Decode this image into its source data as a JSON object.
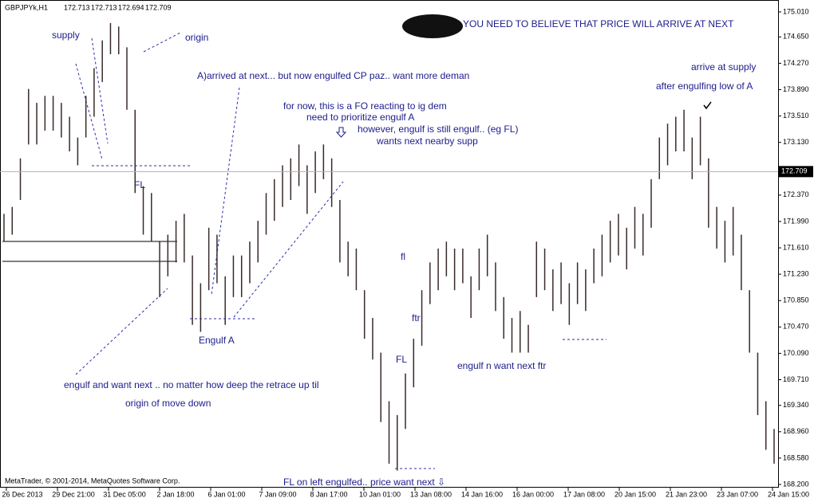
{
  "chart_data": {
    "type": "ohlc_bars",
    "symbol": "GBPJPYk,H1",
    "header_values": [
      172.713,
      172.713,
      172.694,
      172.709
    ],
    "current_price": 172.709,
    "color": "#3a2a2a",
    "ylim": [
      168.154,
      175.182
    ],
    "yticks": [
      {
        "value": 175.01,
        "label": "175.010"
      },
      {
        "value": 174.65,
        "label": "174.650"
      },
      {
        "value": 174.27,
        "label": "174.270"
      },
      {
        "value": 173.89,
        "label": "173.890"
      },
      {
        "value": 173.51,
        "label": "173.510"
      },
      {
        "value": 173.13,
        "label": "173.130"
      },
      {
        "value": 172.37,
        "label": "172.370"
      },
      {
        "value": 171.99,
        "label": "171.990"
      },
      {
        "value": 171.61,
        "label": "171.610"
      },
      {
        "value": 171.23,
        "label": "171.230"
      },
      {
        "value": 170.85,
        "label": "170.850"
      },
      {
        "value": 170.47,
        "label": "170.470"
      },
      {
        "value": 170.09,
        "label": "170.090"
      },
      {
        "value": 169.71,
        "label": "169.710"
      },
      {
        "value": 169.34,
        "label": "169.340"
      },
      {
        "value": 168.96,
        "label": "168.960"
      },
      {
        "value": 168.58,
        "label": "168.580"
      },
      {
        "value": 168.2,
        "label": "168.200"
      }
    ],
    "x_labels": [
      "26 Dec 2013",
      "29 Dec 21:00",
      "31 Dec 05:00",
      "2 Jan 18:00",
      "6 Jan 01:00",
      "7 Jan 09:00",
      "8 Jan 17:00",
      "10 Jan 01:00",
      "13 Jan 08:00",
      "14 Jan 16:00",
      "16 Jan 00:00",
      "17 Jan 08:00",
      "20 Jan 15:00",
      "21 Jan 23:00",
      "23 Jan 07:00",
      "24 Jan 15:00"
    ],
    "high": [
      172.1,
      172.2,
      172.9,
      173.9,
      173.7,
      173.8,
      173.8,
      173.7,
      173.5,
      173.2,
      173.8,
      174.2,
      174.6,
      174.85,
      174.8,
      174.5,
      173.6,
      172.5,
      172.4,
      171.7,
      171.8,
      172.0,
      172.1,
      171.5,
      171.1,
      171.9,
      171.8,
      171.2,
      171.5,
      171.5,
      171.7,
      172.0,
      172.4,
      172.6,
      172.8,
      172.9,
      173.1,
      172.8,
      173.0,
      173.1,
      172.9,
      172.3,
      171.7,
      171.6,
      171.0,
      170.6,
      170.1,
      169.4,
      169.2,
      169.8,
      170.3,
      171.0,
      171.4,
      171.6,
      171.7,
      171.6,
      171.6,
      171.2,
      171.6,
      171.8,
      171.4,
      170.9,
      170.6,
      170.7,
      170.5,
      171.7,
      171.6,
      171.3,
      171.4,
      171.1,
      171.4,
      171.3,
      171.6,
      171.8,
      172.0,
      172.1,
      171.9,
      172.2,
      172.1,
      172.6,
      173.2,
      173.4,
      173.5,
      173.6,
      173.2,
      173.5,
      172.9,
      172.2,
      172.0,
      172.2,
      171.8,
      171.0,
      170.1,
      169.4,
      169.0
    ],
    "low": [
      171.7,
      171.8,
      172.3,
      173.1,
      173.1,
      173.3,
      173.3,
      173.2,
      173.0,
      172.8,
      173.2,
      173.5,
      174.0,
      174.4,
      174.4,
      173.6,
      172.4,
      171.8,
      171.7,
      170.9,
      171.2,
      171.4,
      171.4,
      170.5,
      170.4,
      171.0,
      171.1,
      170.5,
      170.9,
      170.9,
      171.1,
      171.4,
      171.8,
      172.0,
      172.2,
      172.3,
      172.5,
      172.1,
      172.4,
      172.6,
      172.2,
      171.4,
      171.2,
      171.0,
      170.3,
      170.0,
      169.1,
      168.5,
      168.4,
      169.0,
      169.6,
      170.2,
      170.8,
      171.0,
      171.2,
      171.0,
      171.1,
      170.6,
      171.0,
      171.2,
      170.7,
      170.3,
      170.1,
      170.1,
      170.1,
      170.9,
      171.0,
      170.7,
      170.8,
      170.5,
      170.8,
      170.7,
      171.1,
      171.2,
      171.4,
      171.5,
      171.3,
      171.6,
      171.5,
      171.9,
      172.6,
      172.8,
      173.0,
      173.0,
      172.6,
      172.8,
      171.9,
      171.6,
      171.4,
      171.5,
      171.0,
      170.1,
      169.2,
      168.7,
      168.5
    ],
    "annotations": [
      "YOU NEED TO BELIEVE THAT PRICE WILL ARRIVE AT NEXT",
      "supply",
      "origin",
      "A)arrived at next... but now engulfed CP paz.. want more deman",
      "for now, this is a FO reacting to ig dem",
      "need to prioritize engulf A",
      "however, engulf is still engulf.. (eg FL)",
      "wants next nearby supp",
      "arrive at supply",
      "after engulfing low of A",
      "FL",
      "fl",
      "ftr",
      "FL",
      "Engulf A",
      "engulf n want next ftr",
      "engulf and want next .. no matter  how deep the retrace up til",
      "origin of move down",
      "FL on left engulfed.. price want next ⇩",
      "MetaTrader, © 2001-2014, MetaQuotes Software Corp."
    ]
  }
}
